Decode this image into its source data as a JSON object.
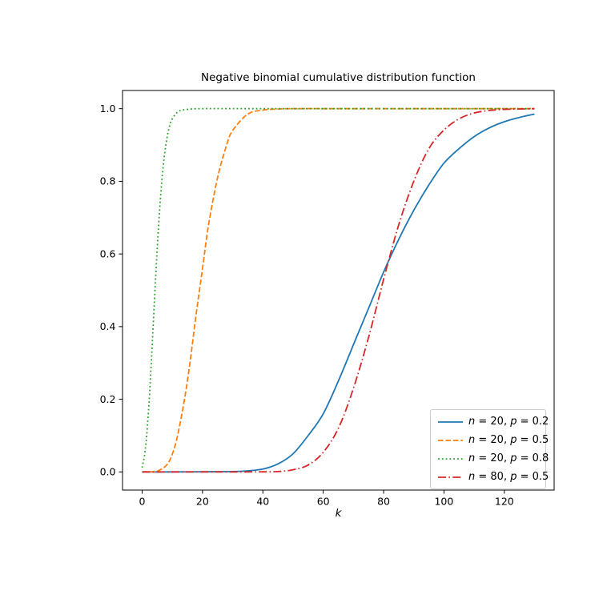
{
  "chart_data": {
    "type": "line",
    "title": "Negative binomial cumulative distribution function",
    "xlabel": "k",
    "ylabel": "",
    "xlim": [
      -6.5,
      136.5
    ],
    "ylim": [
      -0.05,
      1.05
    ],
    "grid": false,
    "background": "#ffffff",
    "axis_color": "#000000",
    "x_ticks": {
      "values": [
        0,
        20,
        40,
        60,
        80,
        100,
        120
      ],
      "labels": [
        "0",
        "20",
        "40",
        "60",
        "80",
        "100",
        "120"
      ]
    },
    "y_ticks": {
      "values": [
        0,
        0.2,
        0.4,
        0.6,
        0.8,
        1.0
      ],
      "labels": [
        "0.0",
        "0.2",
        "0.4",
        "0.6",
        "0.8",
        "1.0"
      ]
    },
    "legend": {
      "position": "lower right"
    },
    "series": [
      {
        "name": "n = 20, p = 0.2",
        "label_parts": [
          {
            "text": "n",
            "italic": true
          },
          {
            "text": " = 20, ",
            "italic": false
          },
          {
            "text": "p",
            "italic": true
          },
          {
            "text": " = 0.2",
            "italic": false
          }
        ],
        "color": "#1f77b4",
        "linestyle": "solid",
        "points": [
          [
            0,
            0
          ],
          [
            10,
            0
          ],
          [
            20,
            0.0005
          ],
          [
            30,
            0.001
          ],
          [
            35,
            0.003
          ],
          [
            40,
            0.008
          ],
          [
            45,
            0.022
          ],
          [
            50,
            0.05
          ],
          [
            55,
            0.1
          ],
          [
            60,
            0.16
          ],
          [
            65,
            0.25
          ],
          [
            70,
            0.35
          ],
          [
            75,
            0.45
          ],
          [
            80,
            0.55
          ],
          [
            85,
            0.64
          ],
          [
            90,
            0.72
          ],
          [
            95,
            0.79
          ],
          [
            100,
            0.85
          ],
          [
            105,
            0.89
          ],
          [
            110,
            0.923
          ],
          [
            115,
            0.947
          ],
          [
            120,
            0.964
          ],
          [
            125,
            0.976
          ],
          [
            130,
            0.985
          ]
        ]
      },
      {
        "name": "n = 20, p = 0.5",
        "label_parts": [
          {
            "text": "n",
            "italic": true
          },
          {
            "text": " = 20, ",
            "italic": false
          },
          {
            "text": "p",
            "italic": true
          },
          {
            "text": " = 0.5",
            "italic": false
          }
        ],
        "color": "#ff7f0e",
        "linestyle": "dashed",
        "points": [
          [
            0,
            0
          ],
          [
            3,
            0.0005
          ],
          [
            5,
            0.002
          ],
          [
            8,
            0.018
          ],
          [
            10,
            0.049
          ],
          [
            12,
            0.11
          ],
          [
            15,
            0.25
          ],
          [
            18,
            0.44
          ],
          [
            20,
            0.56
          ],
          [
            22,
            0.68
          ],
          [
            25,
            0.81
          ],
          [
            28,
            0.9
          ],
          [
            30,
            0.94
          ],
          [
            35,
            0.985
          ],
          [
            40,
            0.996
          ],
          [
            45,
            0.999
          ],
          [
            50,
            1
          ],
          [
            70,
            1
          ],
          [
            90,
            1
          ],
          [
            110,
            1
          ],
          [
            130,
            1
          ]
        ]
      },
      {
        "name": "n = 20, p = 0.8",
        "label_parts": [
          {
            "text": "n",
            "italic": true
          },
          {
            "text": " = 20, ",
            "italic": false
          },
          {
            "text": "p",
            "italic": true
          },
          {
            "text": " = 0.8",
            "italic": false
          }
        ],
        "color": "#2ca02c",
        "linestyle": "dotted",
        "points": [
          [
            0,
            0.012
          ],
          [
            1,
            0.058
          ],
          [
            2,
            0.154
          ],
          [
            3,
            0.296
          ],
          [
            4,
            0.459
          ],
          [
            5,
            0.615
          ],
          [
            6,
            0.746
          ],
          [
            7,
            0.843
          ],
          [
            8,
            0.908
          ],
          [
            9,
            0.949
          ],
          [
            10,
            0.972
          ],
          [
            12,
            0.992
          ],
          [
            15,
            0.998
          ],
          [
            20,
            1
          ],
          [
            40,
            1
          ],
          [
            60,
            1
          ],
          [
            80,
            1
          ],
          [
            100,
            1
          ],
          [
            120,
            1
          ],
          [
            130,
            1
          ]
        ]
      },
      {
        "name": "n = 80, p = 0.5",
        "label_parts": [
          {
            "text": "n",
            "italic": true
          },
          {
            "text": " = 80, ",
            "italic": false
          },
          {
            "text": "p",
            "italic": true
          },
          {
            "text": " = 0.5",
            "italic": false
          }
        ],
        "color": "#d62728",
        "linestyle": "dashdot",
        "points": [
          [
            0,
            0
          ],
          [
            10,
            0
          ],
          [
            20,
            0
          ],
          [
            30,
            0
          ],
          [
            40,
            0.0002
          ],
          [
            45,
            0.001
          ],
          [
            50,
            0.006
          ],
          [
            55,
            0.019
          ],
          [
            60,
            0.054
          ],
          [
            65,
            0.12
          ],
          [
            70,
            0.23
          ],
          [
            75,
            0.37
          ],
          [
            80,
            0.53
          ],
          [
            85,
            0.68
          ],
          [
            90,
            0.8
          ],
          [
            95,
            0.89
          ],
          [
            100,
            0.941
          ],
          [
            105,
            0.972
          ],
          [
            110,
            0.988
          ],
          [
            115,
            0.995
          ],
          [
            120,
            0.998
          ],
          [
            125,
            0.999
          ],
          [
            130,
            1
          ]
        ]
      }
    ]
  }
}
